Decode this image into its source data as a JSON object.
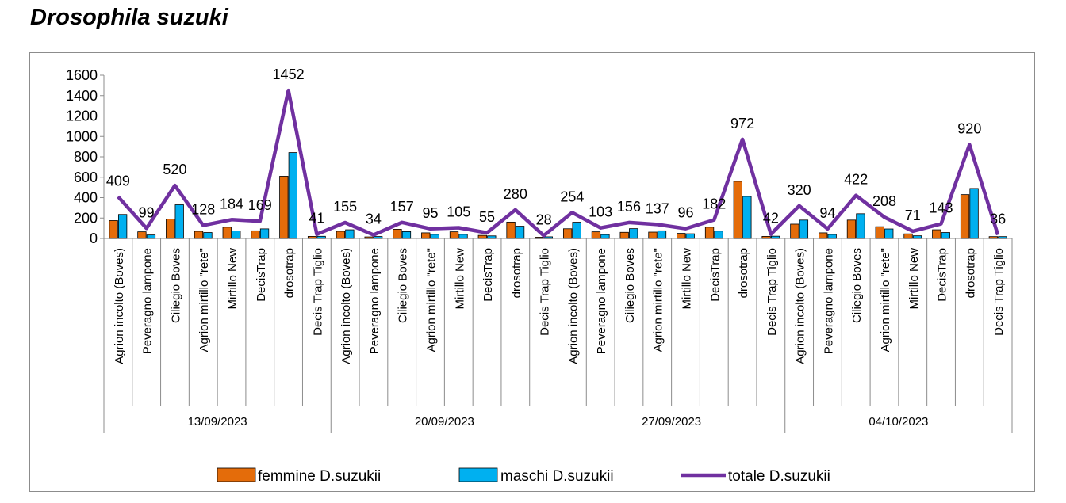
{
  "title": "Drosophila suzuki",
  "chart_data": {
    "type": "bar+line",
    "ylim": [
      0,
      1600
    ],
    "yticks": [
      0,
      200,
      400,
      600,
      800,
      1000,
      1200,
      1400,
      1600
    ],
    "groups": [
      {
        "date": "13/09/2023",
        "categories": [
          "Agrion incolto (Boves)",
          "Peveragno lampone",
          "Ciliegio Boves",
          "Agrion mirtillo \"rete\"",
          "Mirtillo New",
          "DecisTrap",
          "drosotrap",
          "Decis Trap Tiglio"
        ]
      },
      {
        "date": "20/09/2023",
        "categories": [
          "Agrion incolto (Boves)",
          "Peveragno lampone",
          "Ciliegio Boves",
          "Agrion mirtillo \"rete\"",
          "Mirtillo New",
          "DecisTrap",
          "drosotrap",
          "Decis Trap Tiglio"
        ]
      },
      {
        "date": "27/09/2023",
        "categories": [
          "Agrion incolto (Boves)",
          "Peveragno lampone",
          "Ciliegio Boves",
          "Agrion mirtillo \"rete\"",
          "Mirtillo New",
          "DecisTrap",
          "drosotrap",
          "Decis Trap Tiglio"
        ]
      },
      {
        "date": "04/10/2023",
        "categories": [
          "Agrion incolto (Boves)",
          "Peveragno lampone",
          "Ciliegio Boves",
          "Agrion mirtillo \"rete\"",
          "Mirtillo New",
          "DecisTrap",
          "drosotrap",
          "Decis Trap Tiglio"
        ]
      }
    ],
    "series": [
      {
        "name": "femmine D.suzukii",
        "type": "bar",
        "color": "#E46C0A",
        "values": [
          175,
          65,
          190,
          70,
          110,
          75,
          610,
          20,
          70,
          15,
          90,
          55,
          65,
          30,
          160,
          12,
          95,
          65,
          60,
          62,
          50,
          110,
          560,
          20,
          140,
          55,
          180,
          115,
          45,
          85,
          430,
          18
        ]
      },
      {
        "name": "maschi D.suzukii",
        "type": "bar",
        "color": "#00B0F0",
        "values": [
          235,
          34,
          330,
          58,
          74,
          94,
          842,
          21,
          85,
          19,
          67,
          40,
          40,
          25,
          120,
          16,
          159,
          38,
          96,
          75,
          46,
          72,
          412,
          22,
          180,
          39,
          242,
          93,
          26,
          58,
          490,
          18
        ]
      },
      {
        "name": "totale D.suzukii",
        "type": "line",
        "color": "#7030A0",
        "values": [
          409,
          99,
          520,
          128,
          184,
          169,
          1452,
          41,
          155,
          34,
          157,
          95,
          105,
          55,
          280,
          28,
          254,
          103,
          156,
          137,
          96,
          182,
          972,
          42,
          320,
          94,
          422,
          208,
          71,
          143,
          920,
          36
        ]
      }
    ]
  }
}
